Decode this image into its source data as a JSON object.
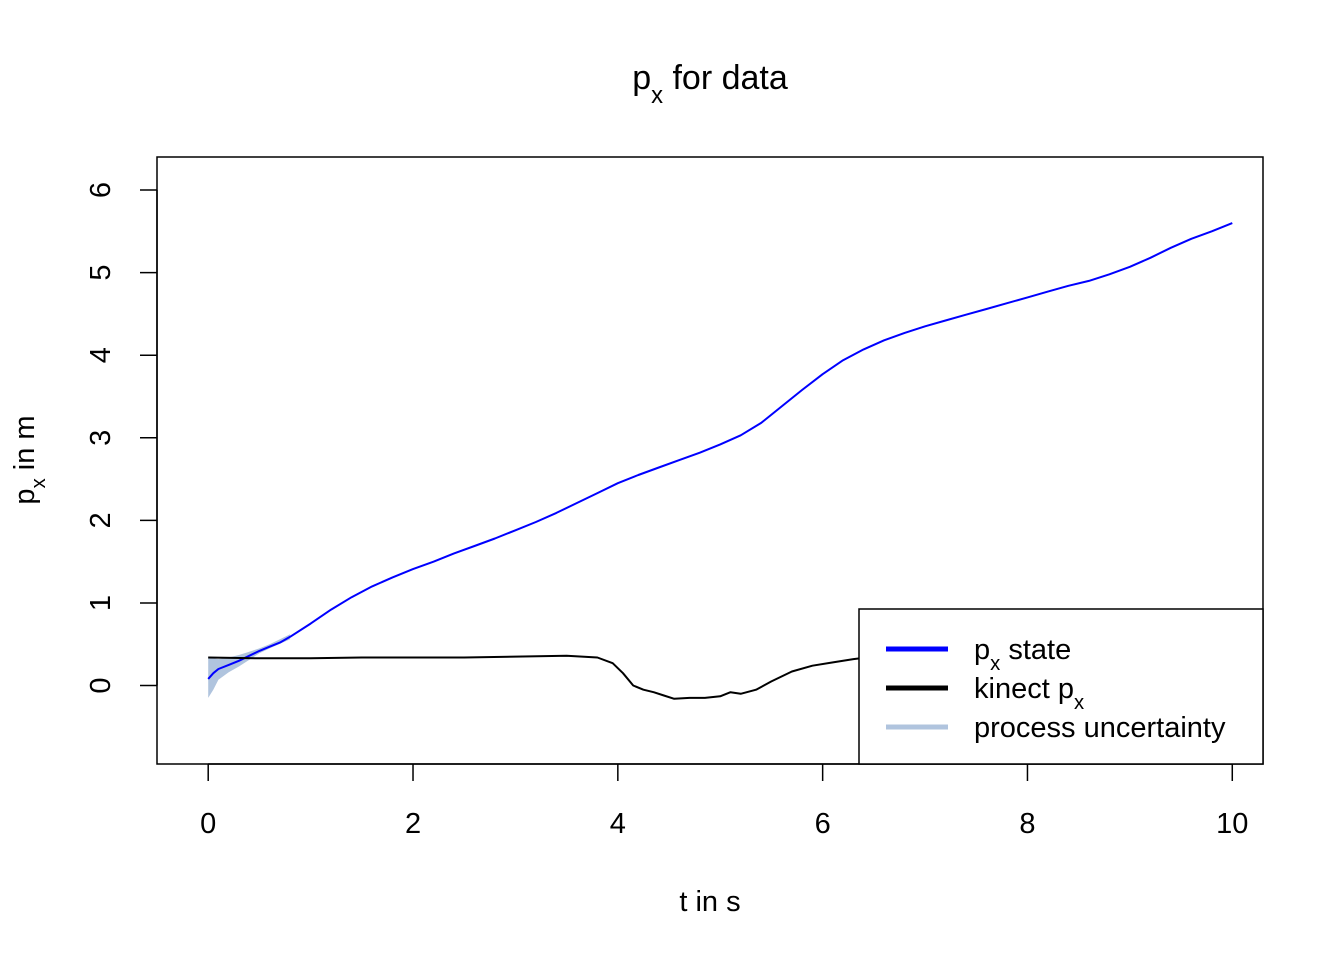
{
  "chart_data": {
    "type": "line",
    "title": {
      "main": "p",
      "sub": "x",
      "rest": "for data"
    },
    "xlabel": "t in s",
    "ylabel": {
      "main": "p",
      "sub": "x",
      "rest": "in m"
    },
    "xlim": [
      -0.5,
      10.3
    ],
    "ylim": [
      -0.95,
      6.4
    ],
    "xticks": [
      0,
      2,
      4,
      6,
      8,
      10
    ],
    "xtick_labels": [
      "0",
      "2",
      "4",
      "6",
      "8",
      "10"
    ],
    "yticks": [
      0,
      1,
      2,
      3,
      4,
      5,
      6
    ],
    "ytick_labels": [
      "0",
      "1",
      "2",
      "3",
      "4",
      "5",
      "6"
    ],
    "grid": false,
    "legend_position": "bottom-right",
    "legend": [
      {
        "main": "p",
        "sub": "x",
        "rest": "state",
        "color": "#0000ff"
      },
      {
        "main": "kinect",
        "sub": "",
        "rest": "p",
        "after_sub": "x",
        "color": "#000000"
      },
      {
        "main": "process uncertainty",
        "sub": "",
        "rest": "",
        "color": "#b0c4de"
      }
    ],
    "series": [
      {
        "key": "state",
        "color": "#0000ff",
        "x": [
          0.0,
          0.05,
          0.1,
          0.2,
          0.3,
          0.4,
          0.5,
          0.6,
          0.7,
          0.8,
          1.0,
          1.2,
          1.4,
          1.6,
          1.8,
          2.0,
          2.2,
          2.4,
          2.6,
          2.8,
          3.0,
          3.2,
          3.4,
          3.6,
          3.8,
          4.0,
          4.2,
          4.4,
          4.6,
          4.8,
          5.0,
          5.2,
          5.4,
          5.6,
          5.8,
          6.0,
          6.2,
          6.4,
          6.6,
          6.8,
          7.0,
          7.2,
          7.4,
          7.6,
          7.8,
          8.0,
          8.2,
          8.4,
          8.6,
          8.8,
          9.0,
          9.2,
          9.4,
          9.6,
          9.8,
          10.0
        ],
        "y": [
          0.08,
          0.15,
          0.2,
          0.25,
          0.3,
          0.36,
          0.42,
          0.47,
          0.52,
          0.59,
          0.75,
          0.92,
          1.07,
          1.2,
          1.31,
          1.41,
          1.5,
          1.6,
          1.69,
          1.78,
          1.88,
          1.98,
          2.09,
          2.21,
          2.33,
          2.45,
          2.55,
          2.64,
          2.73,
          2.82,
          2.92,
          3.03,
          3.18,
          3.38,
          3.58,
          3.77,
          3.94,
          4.07,
          4.18,
          4.27,
          4.35,
          4.42,
          4.49,
          4.56,
          4.63,
          4.7,
          4.77,
          4.84,
          4.9,
          4.98,
          5.07,
          5.18,
          5.3,
          5.41,
          5.5,
          5.6
        ]
      },
      {
        "key": "kinect",
        "color": "#000000",
        "x": [
          0.0,
          0.5,
          1.0,
          1.5,
          2.0,
          2.5,
          3.0,
          3.5,
          3.8,
          3.95,
          4.05,
          4.15,
          4.25,
          4.35,
          4.45,
          4.55,
          4.7,
          4.85,
          5.0,
          5.1,
          5.2,
          5.35,
          5.5,
          5.7,
          5.9,
          6.1,
          6.3,
          6.5
        ],
        "y": [
          0.34,
          0.33,
          0.33,
          0.34,
          0.34,
          0.34,
          0.35,
          0.36,
          0.34,
          0.27,
          0.15,
          0.0,
          -0.05,
          -0.08,
          -0.12,
          -0.16,
          -0.15,
          -0.15,
          -0.13,
          -0.08,
          -0.1,
          -0.05,
          0.05,
          0.17,
          0.24,
          0.28,
          0.32,
          0.35
        ]
      }
    ],
    "band": {
      "key": "process uncertainty",
      "color": "#b0c4de",
      "x": [
        0.0,
        0.05,
        0.1,
        0.2,
        0.3,
        0.4,
        0.5,
        0.6,
        0.8
      ],
      "upper": [
        0.35,
        0.33,
        0.32,
        0.34,
        0.37,
        0.41,
        0.45,
        0.5,
        0.62
      ],
      "lower": [
        -0.15,
        -0.05,
        0.07,
        0.16,
        0.23,
        0.31,
        0.39,
        0.45,
        0.56
      ]
    }
  }
}
